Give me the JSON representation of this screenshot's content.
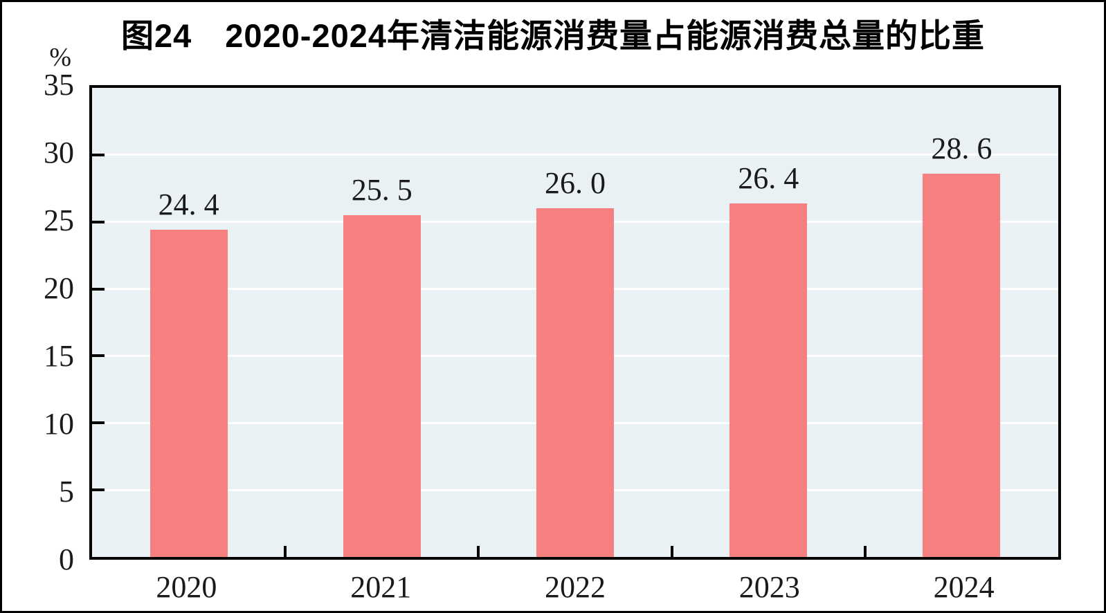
{
  "chart_data": {
    "type": "bar",
    "title": "图24　2020-2024年清洁能源消费量占能源消费总量的比重",
    "unit_label": "%",
    "categories": [
      "2020",
      "2021",
      "2022",
      "2023",
      "2024"
    ],
    "values": [
      24.4,
      25.5,
      26.0,
      26.4,
      28.6
    ],
    "value_labels": [
      "24. 4",
      "25. 5",
      "26. 0",
      "26. 4",
      "28. 6"
    ],
    "xlabel": "",
    "ylabel": "%",
    "ylim": [
      0,
      35
    ],
    "yticks": [
      0,
      5,
      10,
      15,
      20,
      25,
      30,
      35
    ],
    "ytick_labels": [
      "0",
      "5",
      "10",
      "15",
      "20",
      "25",
      "30",
      "35"
    ],
    "grid": "horizontal",
    "legend_position": "none",
    "colors": {
      "bar": "#F5807F",
      "plot_background": "#E9F1F4",
      "gridline": "#FFFFFF",
      "axis": "#000000",
      "text": "#1A1A1A"
    }
  }
}
